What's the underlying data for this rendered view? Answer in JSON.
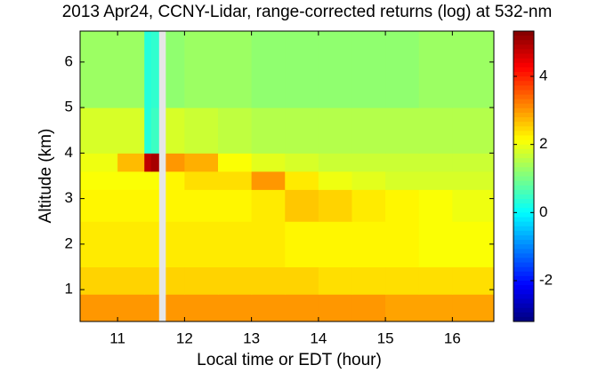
{
  "chart_data": {
    "type": "heatmap",
    "title": "2013 Apr24, CCNY-Lidar, range-corrected returns (log) at 532-nm",
    "x_label": "Local time or EDT (hour)",
    "y_label": "Altitude (km)",
    "colormap": "jet",
    "x_bins": [
      10.44,
      11,
      11.4,
      11.5,
      11.62,
      11.72,
      12,
      12.5,
      13,
      13.5,
      14,
      14.5,
      15,
      15.5,
      16,
      16.62
    ],
    "y_bins": [
      0.3,
      0.9,
      1.5,
      2.5,
      3.2,
      3.6,
      4.0,
      5.0,
      6.68
    ],
    "values": [
      [
        3.0,
        3.0,
        3.0,
        3.0,
        null,
        3.0,
        3.0,
        3.0,
        3.0,
        3.0,
        3.0,
        3.0,
        2.9,
        2.9,
        2.9
      ],
      [
        2.5,
        2.5,
        2.5,
        2.5,
        null,
        2.5,
        2.5,
        2.5,
        2.5,
        2.5,
        2.4,
        2.4,
        2.4,
        2.4,
        2.4
      ],
      [
        2.3,
        2.3,
        2.3,
        2.3,
        null,
        2.3,
        2.3,
        2.3,
        2.3,
        2.2,
        2.2,
        2.2,
        2.2,
        2.1,
        2.1
      ],
      [
        2.2,
        2.2,
        2.2,
        2.2,
        null,
        2.2,
        2.2,
        2.2,
        2.3,
        2.6,
        2.5,
        2.3,
        2.2,
        2.1,
        2.0
      ],
      [
        2.1,
        2.1,
        2.1,
        2.1,
        null,
        2.2,
        2.4,
        2.4,
        3.0,
        2.3,
        2.0,
        1.9,
        1.8,
        1.8,
        1.8
      ],
      [
        2.0,
        2.7,
        4.8,
        5.0,
        null,
        3.0,
        2.8,
        2.1,
        1.9,
        1.8,
        1.7,
        1.7,
        1.7,
        1.7,
        1.7
      ],
      [
        1.8,
        1.8,
        0.3,
        0.5,
        null,
        1.8,
        1.7,
        1.6,
        1.5,
        1.5,
        1.5,
        1.5,
        1.5,
        1.5,
        1.5
      ],
      [
        1.3,
        1.3,
        0.3,
        0.4,
        null,
        1.2,
        1.3,
        1.3,
        1.2,
        1.2,
        1.2,
        1.2,
        1.2,
        1.3,
        1.3
      ]
    ],
    "xlim": [
      10.44,
      16.62
    ],
    "xticks": [
      11,
      12,
      13,
      14,
      15,
      16
    ],
    "ylim": [
      0.3,
      6.68
    ],
    "yticks": [
      1,
      2,
      3,
      4,
      5,
      6
    ],
    "clim": [
      -3.2,
      5.33
    ],
    "cticks": [
      -2,
      0,
      2,
      4
    ]
  }
}
